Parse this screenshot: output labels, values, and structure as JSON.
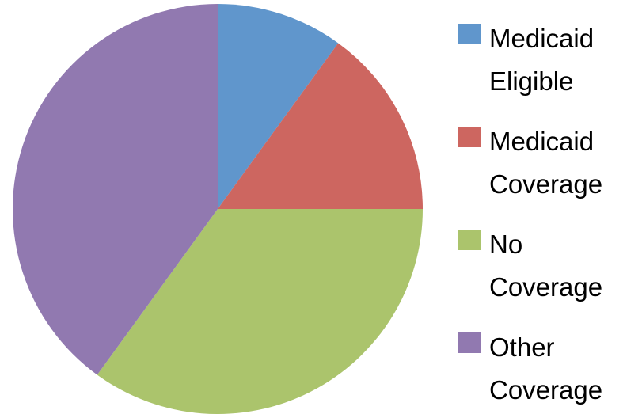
{
  "chart_data": {
    "type": "pie",
    "categories": [
      "Medicaid Eligible",
      "Medicaid Coverage",
      "No Coverage",
      "Other Coverage"
    ],
    "values": [
      10,
      15,
      35,
      40
    ],
    "colors": [
      "#6096cc",
      "#cd6660",
      "#abc46c",
      "#9179b0"
    ],
    "legend": "right"
  }
}
